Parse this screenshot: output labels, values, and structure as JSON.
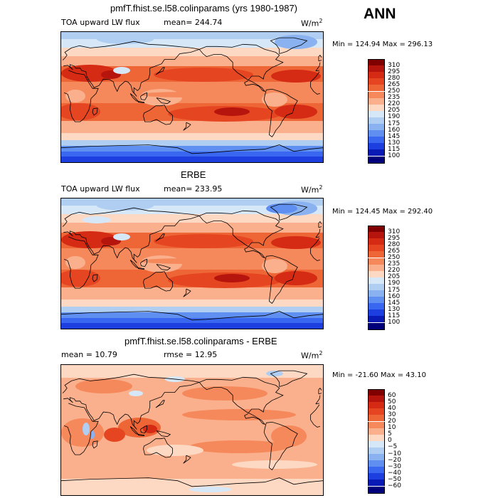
{
  "season": "ANN",
  "panels": [
    {
      "title": "pmfT.fhist.se.l58.colinparams (yrs 1980-1987)",
      "variable": "TOA upward LW flux",
      "mean_label": "mean= 244.74",
      "units": "W/m",
      "units_exp": "2",
      "minmax": "Min = 124.94 Max = 296.13",
      "levels": [
        "310",
        "295",
        "280",
        "265",
        "250",
        "235",
        "220",
        "205",
        "190",
        "175",
        "160",
        "145",
        "130",
        "115",
        "100"
      ],
      "colors": [
        "#800000",
        "#b5150d",
        "#d52a13",
        "#e54621",
        "#ee6536",
        "#f5895c",
        "#fbb08d",
        "#fdd9c4",
        "#d6e8f7",
        "#b0cdf2",
        "#8ab2f0",
        "#5f8ff0",
        "#3a67ef",
        "#1d3fe0",
        "#0a1ab5",
        "#00007a"
      ]
    },
    {
      "title": "ERBE",
      "variable": "TOA upward LW flux",
      "mean_label": "mean= 233.95",
      "units": "W/m",
      "units_exp": "2",
      "minmax": "Min = 124.45 Max = 292.40",
      "levels": [
        "310",
        "295",
        "280",
        "265",
        "250",
        "235",
        "220",
        "205",
        "190",
        "175",
        "160",
        "145",
        "130",
        "115",
        "100"
      ],
      "colors": [
        "#800000",
        "#b5150d",
        "#d52a13",
        "#e54621",
        "#ee6536",
        "#f5895c",
        "#fbb08d",
        "#fdd9c4",
        "#d6e8f7",
        "#b0cdf2",
        "#8ab2f0",
        "#5f8ff0",
        "#3a67ef",
        "#1d3fe0",
        "#0a1ab5",
        "#00007a"
      ]
    },
    {
      "title": "pmfT.fhist.se.l58.colinparams - ERBE",
      "mean_label": "mean =  10.79",
      "rmse_label": "rmse =  12.95",
      "units": "W/m",
      "units_exp": "2",
      "minmax": "Min = -21.60 Max =  43.10",
      "levels": [
        "60",
        "50",
        "40",
        "30",
        "20",
        "10",
        "5",
        "0",
        "−5",
        "−10",
        "−20",
        "−30",
        "−40",
        "−50",
        "−60"
      ],
      "colors": [
        "#800000",
        "#b5150d",
        "#d52a13",
        "#e54621",
        "#ee6536",
        "#f5895c",
        "#fbb08d",
        "#fdd9c4",
        "#d6e8f7",
        "#b0cdf2",
        "#8ab2f0",
        "#5f8ff0",
        "#3a67ef",
        "#1d3fe0",
        "#0a1ab5",
        "#00007a"
      ]
    }
  ]
}
